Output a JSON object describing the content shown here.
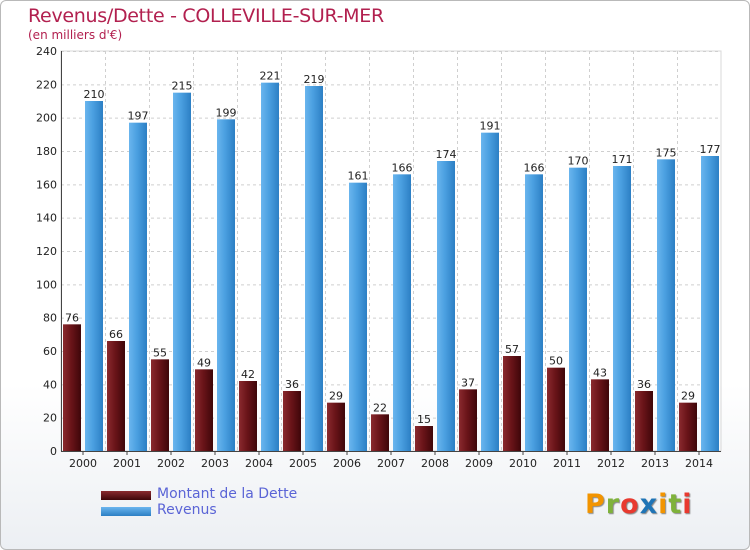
{
  "title": "Revenus/Dette - COLLEVILLE-SUR-MER",
  "subtitle": "(en milliers d'€)",
  "logo": {
    "text": "Proxiti",
    "colors": [
      "#f29400",
      "#7fb23b",
      "#e8392f",
      "#1f74b6",
      "#f29400",
      "#7fb23b",
      "#e8392f"
    ]
  },
  "legend": {
    "items": [
      {
        "label": "Montant de la Dette",
        "color": "#6a1419"
      },
      {
        "label": "Revenus",
        "color": "#4a9fe0"
      }
    ]
  },
  "chart_data": {
    "type": "bar",
    "categories": [
      "2000",
      "2001",
      "2002",
      "2003",
      "2004",
      "2005",
      "2006",
      "2007",
      "2008",
      "2009",
      "2010",
      "2011",
      "2012",
      "2013",
      "2014"
    ],
    "series": [
      {
        "name": "Montant de la Dette",
        "color": "#6a1419",
        "values": [
          76,
          66,
          55,
          49,
          42,
          36,
          29,
          22,
          15,
          37,
          57,
          50,
          43,
          36,
          29
        ]
      },
      {
        "name": "Revenus",
        "color": "#4a9fe0",
        "values": [
          210,
          197,
          215,
          199,
          221,
          219,
          161,
          166,
          174,
          191,
          166,
          170,
          171,
          175,
          177
        ]
      }
    ],
    "y_ticks": [
      0,
      20,
      40,
      60,
      80,
      100,
      120,
      140,
      160,
      180,
      200,
      220,
      240
    ],
    "ylim": [
      0,
      240
    ],
    "grid": true,
    "legend_position": "bottom-left"
  }
}
